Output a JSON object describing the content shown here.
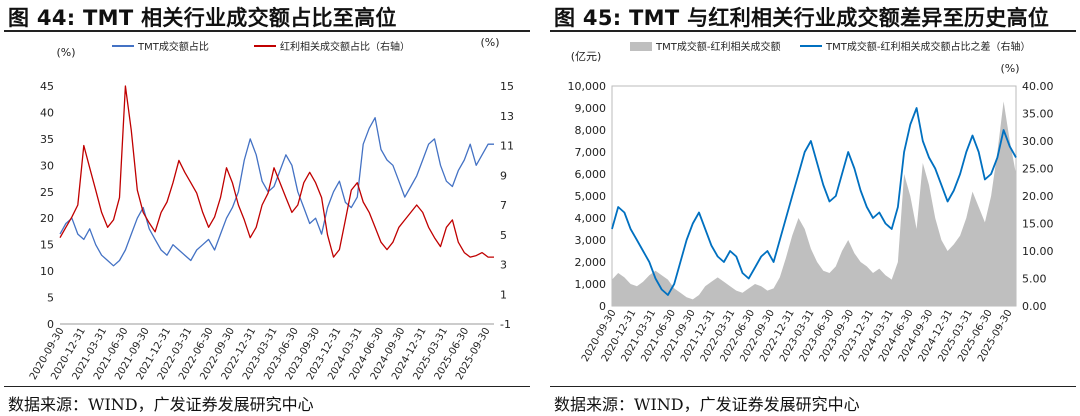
{
  "panels": [
    {
      "title": "图 44:  TMT 相关行业成交额占比至高位",
      "source": "数据来源：WIND，广发证券发展研究中心"
    },
    {
      "title": "图 45:  TMT 与红利相关行业成交额差异至历史高位",
      "source": "数据来源：WIND，广发证券发展研究中心"
    }
  ],
  "colors": {
    "blue": "#4472C4",
    "red": "#C00000",
    "gray": "#BFBFBF",
    "blue2": "#0070C0"
  },
  "chart_data": [
    {
      "type": "line",
      "x_labels": [
        "2020-09-30",
        "2020-12-31",
        "2021-03-31",
        "2021-06-30",
        "2021-09-30",
        "2021-12-31",
        "2022-03-31",
        "2022-06-30",
        "2022-09-30",
        "2022-12-31",
        "2023-03-31",
        "2023-06-30",
        "2023-09-30",
        "2023-12-31",
        "2024-03-31",
        "2024-06-30",
        "2024-09-30",
        "2024-12-31",
        "2025-03-31",
        "2025-06-30",
        "2025-09-30"
      ],
      "left_unit": "(%)",
      "right_unit": "(%)",
      "ylim_left": [
        0,
        45
      ],
      "ylim_right": [
        -1,
        15
      ],
      "yticks_left": [
        "0",
        "5",
        "10",
        "15",
        "20",
        "25",
        "30",
        "35",
        "40",
        "45"
      ],
      "yticks_right": [
        "-1",
        "1",
        "3",
        "5",
        "7",
        "9",
        "11",
        "13",
        "15"
      ],
      "series": [
        {
          "name": "TMT成交额占比",
          "axis": "left",
          "values": [
            17,
            19,
            20,
            17,
            16,
            18,
            15,
            13,
            12,
            11,
            12,
            14,
            17,
            20,
            22,
            18,
            16,
            14,
            13,
            15,
            14,
            13,
            12,
            14,
            15,
            16,
            14,
            17,
            20,
            22,
            25,
            31,
            35,
            32,
            27,
            25,
            26,
            29,
            32,
            30,
            25,
            22,
            19,
            20,
            17,
            22,
            25,
            27,
            23,
            22,
            24,
            34,
            37,
            39,
            33,
            31,
            30,
            27,
            24,
            26,
            28,
            31,
            34,
            35,
            30,
            27,
            26,
            29,
            31,
            34,
            30,
            32,
            34,
            34
          ]
        },
        {
          "name": "红利相关成交额占比（右轴）",
          "axis": "right",
          "values": [
            4.8,
            5.5,
            6.2,
            7.0,
            11.0,
            9.5,
            8.0,
            6.5,
            5.5,
            6.0,
            7.5,
            15.0,
            12.0,
            8.0,
            6.5,
            5.8,
            5.2,
            6.5,
            7.2,
            8.5,
            10.0,
            9.2,
            8.5,
            7.8,
            6.5,
            5.5,
            6.2,
            7.5,
            9.5,
            8.5,
            7.0,
            6.0,
            4.8,
            5.5,
            7.0,
            7.8,
            9.5,
            8.5,
            7.5,
            6.5,
            7.0,
            8.5,
            9.2,
            8.5,
            7.5,
            5.0,
            3.5,
            4.0,
            6.0,
            8.0,
            8.5,
            7.2,
            6.5,
            5.5,
            4.5,
            4.0,
            4.5,
            5.5,
            6.0,
            6.5,
            7.0,
            6.5,
            5.5,
            4.8,
            4.2,
            5.5,
            6.0,
            4.5,
            3.8,
            3.5,
            3.6,
            3.8,
            3.5,
            3.5
          ]
        }
      ]
    },
    {
      "type": "area",
      "x_labels": [
        "2020-09-30",
        "2020-12-31",
        "2021-03-31",
        "2021-06-30",
        "2021-09-30",
        "2021-12-31",
        "2022-03-31",
        "2022-06-30",
        "2022-09-30",
        "2022-12-31",
        "2023-03-31",
        "2023-06-30",
        "2023-09-30",
        "2023-12-31",
        "2024-03-31",
        "2024-06-30",
        "2024-09-30",
        "2024-12-31",
        "2025-03-31",
        "2025-06-30",
        "2025-09-30"
      ],
      "left_unit": "(亿元)",
      "right_unit": "(%)",
      "ylim_left": [
        0,
        10000
      ],
      "ylim_right": [
        0,
        40
      ],
      "yticks_left": [
        "0",
        "1,000",
        "2,000",
        "3,000",
        "4,000",
        "5,000",
        "6,000",
        "7,000",
        "8,000",
        "9,000",
        "10,000"
      ],
      "yticks_right": [
        "0.00",
        "5.00",
        "10.00",
        "15.00",
        "20.00",
        "25.00",
        "30.00",
        "35.00",
        "40.00"
      ],
      "series": [
        {
          "name": "TMT成交额-红利相关成交额",
          "axis": "left",
          "type": "area",
          "values": [
            1200,
            1500,
            1300,
            1000,
            900,
            1100,
            1400,
            1600,
            1400,
            1200,
            800,
            600,
            400,
            300,
            500,
            900,
            1100,
            1300,
            1100,
            900,
            700,
            600,
            800,
            1000,
            900,
            700,
            800,
            1300,
            2200,
            3200,
            4000,
            3500,
            2600,
            2000,
            1600,
            1500,
            1800,
            2500,
            3000,
            2400,
            2000,
            1800,
            1500,
            1700,
            1400,
            1200,
            2000,
            6000,
            5000,
            3500,
            6500,
            5500,
            4000,
            3000,
            2500,
            2800,
            3200,
            4000,
            5200,
            4500,
            3800,
            5000,
            7000,
            9300,
            7500,
            6000
          ]
        },
        {
          "name": "TMT成交额-红利相关成交额占比之差（右轴）",
          "axis": "right",
          "type": "line",
          "values": [
            14,
            18,
            17,
            14,
            12,
            10,
            8,
            5,
            3,
            2,
            4,
            8,
            12,
            15,
            17,
            14,
            11,
            9,
            8,
            10,
            9,
            6,
            5,
            7,
            9,
            10,
            8,
            12,
            16,
            20,
            24,
            28,
            30,
            26,
            22,
            19,
            20,
            24,
            28,
            25,
            21,
            18,
            16,
            17,
            15,
            14,
            18,
            28,
            33,
            36,
            30,
            27,
            25,
            22,
            19,
            21,
            24,
            28,
            31,
            28,
            23,
            24,
            27,
            32,
            29,
            27
          ]
        }
      ]
    }
  ]
}
